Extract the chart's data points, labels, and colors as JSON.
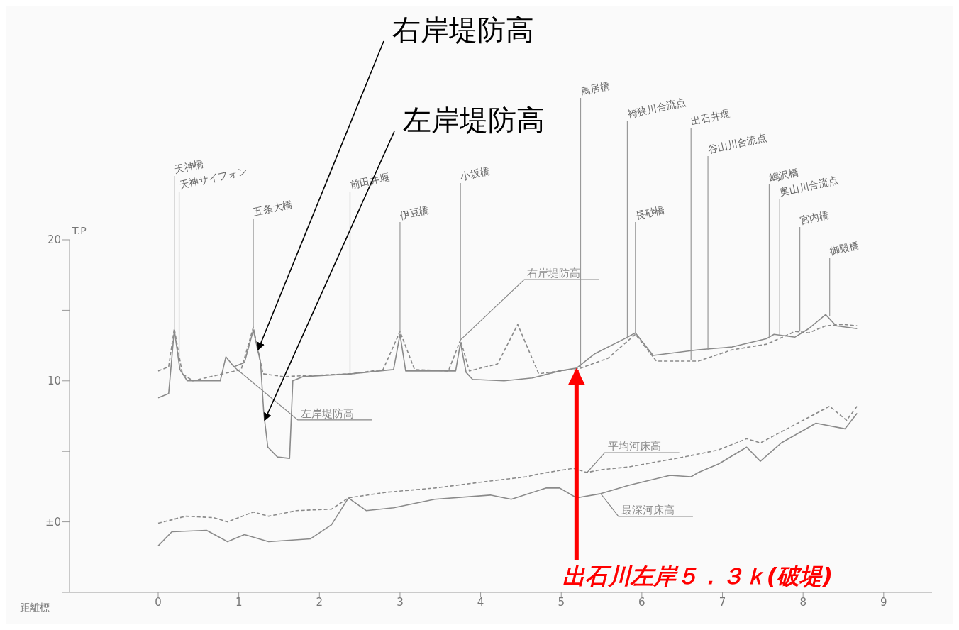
{
  "chart_data": {
    "type": "line",
    "xlabel": "距離標",
    "ylabel": "T.P",
    "xlim": [
      -1.1,
      9.6
    ],
    "ylim": [
      -5,
      20
    ],
    "xticks": [
      0,
      1,
      2,
      3,
      4,
      5,
      6,
      7,
      8,
      9
    ],
    "yticks": [
      {
        "value": -5,
        "label": null
      },
      {
        "value": 0,
        "label": "±0"
      },
      {
        "value": 5,
        "label": null
      },
      10,
      {
        "value": 15,
        "label": null
      },
      20
    ],
    "marker": "none",
    "series": [
      {
        "name": "右岸堤防高",
        "color": "#8a8a8a",
        "line_style": "dashed",
        "x": [
          0,
          0.13,
          0.2,
          0.3,
          0.43,
          1.03,
          1.18,
          1.3,
          1.55,
          2.4,
          2.79,
          3.0,
          3.18,
          3.6,
          3.75,
          3.86,
          4.21,
          4.46,
          4.72,
          4.98,
          5.24,
          5.58,
          5.92,
          6.18,
          6.7,
          7.12,
          7.55,
          7.9,
          8.07,
          8.28,
          8.5,
          8.67
        ],
        "values": [
          10.7,
          11.0,
          13.7,
          10.5,
          10.0,
          10.8,
          13.8,
          10.5,
          10.3,
          10.5,
          10.8,
          13.5,
          10.8,
          10.7,
          12.9,
          10.7,
          11.2,
          14.0,
          10.5,
          10.7,
          10.9,
          11.6,
          13.3,
          11.4,
          11.4,
          12.2,
          12.6,
          13.5,
          13.4,
          13.9,
          14.0,
          13.9
        ]
      },
      {
        "name": "左岸堤防高",
        "color": "#8a8a8a",
        "line_style": "solid",
        "x": [
          0,
          0.13,
          0.2,
          0.27,
          0.36,
          0.77,
          0.84,
          0.94,
          1.07,
          1.18,
          1.27,
          1.31,
          1.36,
          1.48,
          1.63,
          1.67,
          1.8,
          2.4,
          2.92,
          3.0,
          3.07,
          3.69,
          3.75,
          3.82,
          3.9,
          4.29,
          4.64,
          4.98,
          5.19,
          5.41,
          5.79,
          5.92,
          6.14,
          6.7,
          7.12,
          7.55,
          7.64,
          7.9,
          8.07,
          8.28,
          8.41,
          8.67
        ],
        "values": [
          8.8,
          9.1,
          13.6,
          10.8,
          10.0,
          10.0,
          11.7,
          11.0,
          11.3,
          13.6,
          11.3,
          7.7,
          5.3,
          4.6,
          4.5,
          10.0,
          10.3,
          10.5,
          10.8,
          13.3,
          10.7,
          10.7,
          12.7,
          10.6,
          10.1,
          10.0,
          10.2,
          10.7,
          10.9,
          11.9,
          13.0,
          13.4,
          11.8,
          12.2,
          12.4,
          13.0,
          13.3,
          13.1,
          13.7,
          14.7,
          13.9,
          13.7
        ]
      },
      {
        "name": "平均河床高",
        "color": "#8a8a8a",
        "line_style": "dashed",
        "x": [
          0,
          0.34,
          0.69,
          0.86,
          1.18,
          1.37,
          1.72,
          2.15,
          2.36,
          2.83,
          3.43,
          4.12,
          4.57,
          4.72,
          5.15,
          5.32,
          5.49,
          5.84,
          6.52,
          6.95,
          7.3,
          7.47,
          7.9,
          8.33,
          8.54,
          8.67
        ],
        "values": [
          -0.1,
          0.4,
          0.3,
          0,
          0.7,
          0.4,
          0.8,
          0.9,
          1.7,
          2.1,
          2.4,
          2.9,
          3.2,
          3.4,
          3.8,
          3.5,
          3.7,
          3.9,
          4.6,
          5.1,
          5.9,
          5.6,
          6.9,
          8.2,
          7.2,
          8.2
        ]
      },
      {
        "name": "最深河床高",
        "color": "#8a8a8a",
        "line_style": "solid",
        "x": [
          0,
          0.17,
          0.6,
          0.86,
          1.07,
          1.37,
          1.89,
          2.15,
          2.36,
          2.58,
          2.92,
          3.43,
          4.12,
          4.38,
          4.81,
          4.98,
          5.19,
          5.49,
          5.84,
          6.35,
          6.61,
          6.7,
          6.95,
          7.3,
          7.47,
          7.73,
          8.16,
          8.52,
          8.67
        ],
        "values": [
          -1.7,
          -0.7,
          -0.6,
          -1.4,
          -0.9,
          -1.4,
          -1.2,
          -0.2,
          1.7,
          0.8,
          1.0,
          1.6,
          1.9,
          1.6,
          2.4,
          2.4,
          1.7,
          2.0,
          2.6,
          3.3,
          3.2,
          3.5,
          4.1,
          5.3,
          4.3,
          5.6,
          7.0,
          6.6,
          7.7
        ]
      }
    ],
    "annotations": [
      {
        "text": "天神橋",
        "x": 0.2,
        "y": 13.6
      },
      {
        "text": "天神サイフォン",
        "x": 0.26,
        "y": 11.5
      },
      {
        "text": "五条大橋",
        "x": 1.18,
        "y": 13.7
      },
      {
        "text": "前田井堰",
        "x": 2.38,
        "y": 10.5
      },
      {
        "text": "伊豆橋",
        "x": 3.0,
        "y": 13.4
      },
      {
        "text": "小坂橋",
        "x": 3.75,
        "y": 12.8
      },
      {
        "text": "鳥居橋",
        "x": 5.24,
        "y": 10.9
      },
      {
        "text": "袴狭川合流点",
        "x": 5.82,
        "y": 13.0
      },
      {
        "text": "長砂橋",
        "x": 5.92,
        "y": 13.4
      },
      {
        "text": "出石井堰",
        "x": 6.61,
        "y": 11.5
      },
      {
        "text": "谷山川合流点",
        "x": 6.82,
        "y": 12.2
      },
      {
        "text": "嶋沢橋",
        "x": 7.58,
        "y": 13.0
      },
      {
        "text": "奥山川合流点",
        "x": 7.71,
        "y": 13.2
      },
      {
        "text": "宮内橋",
        "x": 7.96,
        "y": 13.5
      },
      {
        "text": "御殿橋",
        "x": 8.33,
        "y": 14.6
      },
      {
        "text": "右岸堤防高",
        "x": 1.24,
        "y": 12.2
      },
      {
        "text": "左岸堤防高",
        "x": 1.32,
        "y": 7.2
      },
      {
        "text": "出石川左岸５．３ｋ(破堤)",
        "x": 5.19,
        "y": 11.0
      }
    ]
  }
}
